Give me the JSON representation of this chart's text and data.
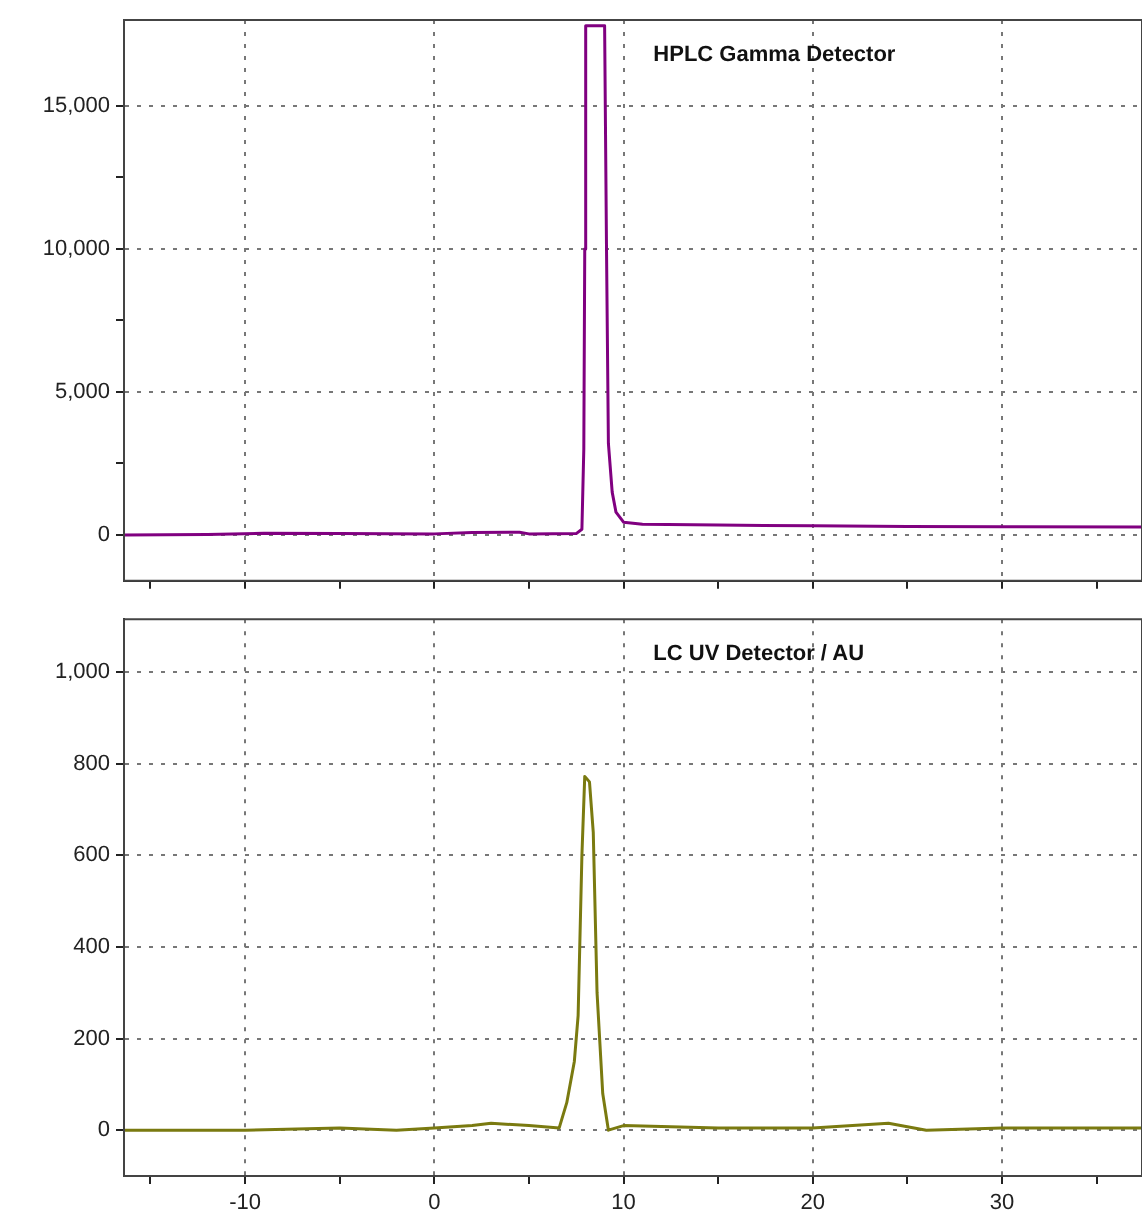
{
  "chart_data": [
    {
      "type": "line",
      "title": "HPLC Gamma Detector",
      "xlim": [
        -16.4,
        37.4
      ],
      "ylim": [
        -1600,
        18000
      ],
      "tick_labels": "y",
      "grid": true,
      "marker": "none",
      "line_style": "solid",
      "xticks": [
        {
          "value": -15,
          "label": null
        },
        -10,
        {
          "value": -5,
          "label": null
        },
        0,
        {
          "value": 5,
          "label": null
        },
        10,
        {
          "value": 15,
          "label": null
        },
        20,
        {
          "value": 25,
          "label": null
        },
        30,
        {
          "value": 35,
          "label": null
        }
      ],
      "yticks": [
        0,
        {
          "value": 2500,
          "label": null
        },
        {
          "value": 5000,
          "label": "5,000"
        },
        {
          "value": 7500,
          "label": null
        },
        {
          "value": 10000,
          "label": "10,000"
        },
        {
          "value": 12500,
          "label": null
        },
        {
          "value": 15000,
          "label": "15,000"
        }
      ],
      "series": [
        {
          "color": "#800080",
          "x": [
            -16.4,
            -12,
            -9,
            -5,
            0,
            2,
            4.5,
            5,
            7.5,
            7.8,
            7.9,
            7.95,
            8.0,
            9.0,
            9.1,
            9.2,
            9.4,
            9.6,
            10.0,
            11,
            15,
            20,
            25,
            30,
            37.4
          ],
          "values": [
            0,
            20,
            60,
            50,
            40,
            90,
            100,
            40,
            50,
            200,
            3000,
            10000,
            17800,
            17800,
            10000,
            3200,
            1500,
            800,
            450,
            380,
            350,
            320,
            300,
            290,
            280
          ]
        }
      ]
    },
    {
      "type": "line",
      "title": "LC UV Detector / AU",
      "xlim": [
        -16.4,
        37.4
      ],
      "ylim": [
        -100,
        1115
      ],
      "grid": true,
      "marker": "none",
      "line_style": "solid",
      "xticks": [
        {
          "value": -15,
          "label": null
        },
        -10,
        {
          "value": -5,
          "label": null
        },
        0,
        {
          "value": 5,
          "label": null
        },
        10,
        {
          "value": 15,
          "label": null
        },
        20,
        {
          "value": 25,
          "label": null
        },
        30,
        {
          "value": 35,
          "label": null
        }
      ],
      "yticks": [
        0,
        200,
        400,
        600,
        800,
        {
          "value": 1000,
          "label": "1,000"
        }
      ],
      "series": [
        {
          "color": "#7a7a10",
          "x": [
            -16.4,
            -10,
            -5,
            -2,
            0,
            2,
            3,
            5,
            6.6,
            7.0,
            7.4,
            7.6,
            7.8,
            7.95,
            8.2,
            8.4,
            8.6,
            8.9,
            9.2,
            10,
            15,
            20,
            24,
            26,
            30,
            37.4
          ],
          "values": [
            0,
            0,
            5,
            0,
            5,
            10,
            15,
            10,
            5,
            60,
            150,
            250,
            600,
            772,
            760,
            650,
            300,
            80,
            0,
            10,
            5,
            5,
            15,
            0,
            5,
            5
          ]
        }
      ]
    }
  ]
}
